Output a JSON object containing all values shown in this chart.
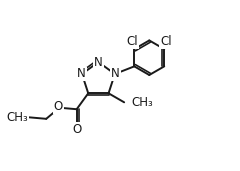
{
  "background_color": "#ffffff",
  "line_color": "#1a1a1a",
  "line_width": 1.4,
  "font_size": 8.5,
  "figsize": [
    2.4,
    1.71
  ],
  "dpi": 100,
  "xlim": [
    0,
    10
  ],
  "ylim": [
    0,
    7.125
  ]
}
